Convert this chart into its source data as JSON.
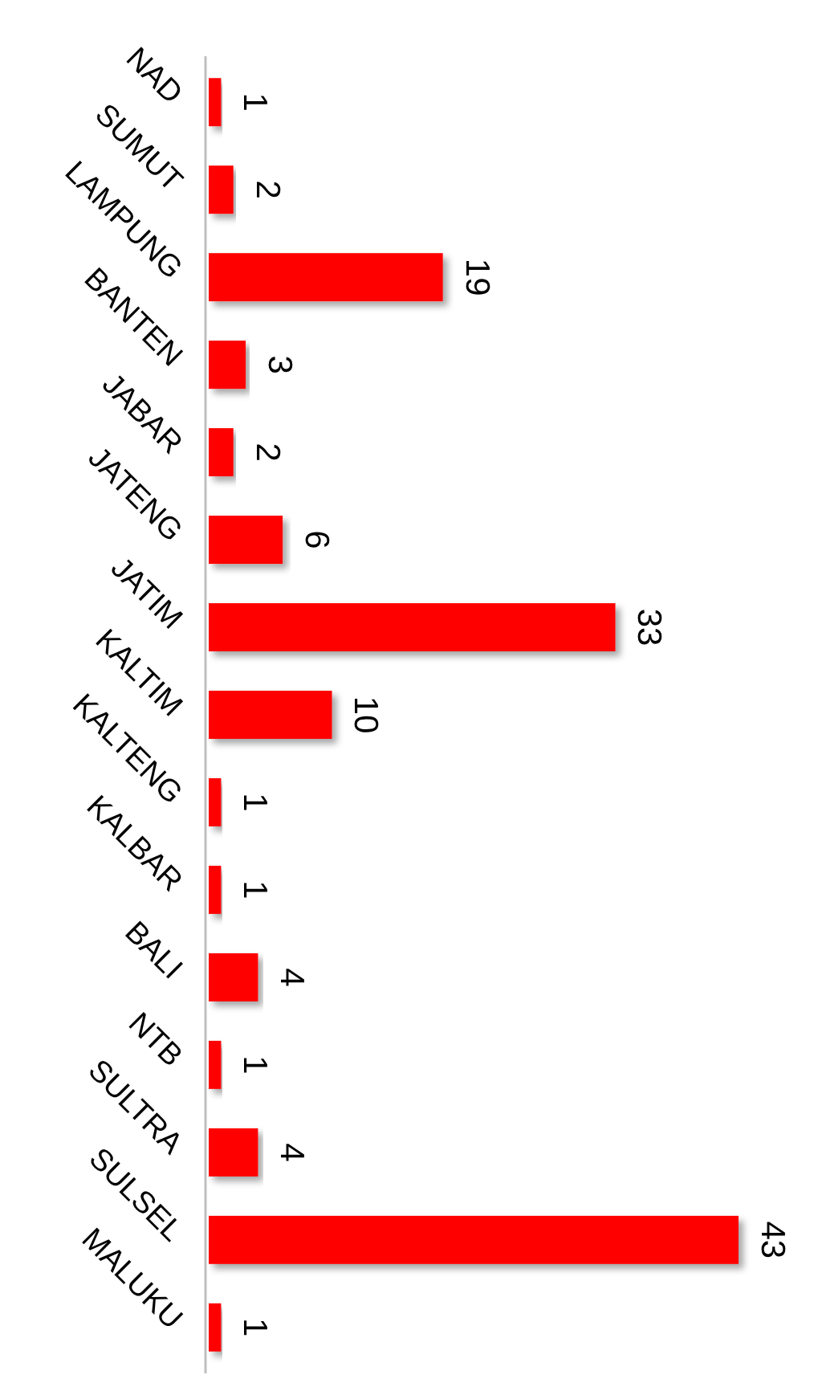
{
  "chart_data": {
    "type": "bar",
    "orientation": "horizontal",
    "data_labels": true,
    "color": "#ff0000",
    "categories": [
      "NAD",
      "SUMUT",
      "LAMPUNG",
      "BANTEN",
      "JABAR",
      "JATENG",
      "JATIM",
      "KALTIM",
      "KALTENG",
      "KALBAR",
      "BALI",
      "NTB",
      "SULTRA",
      "SULSEL",
      "MALUKU"
    ],
    "values": [
      1,
      2,
      19,
      3,
      2,
      6,
      33,
      10,
      1,
      1,
      4,
      1,
      4,
      43,
      1
    ]
  }
}
